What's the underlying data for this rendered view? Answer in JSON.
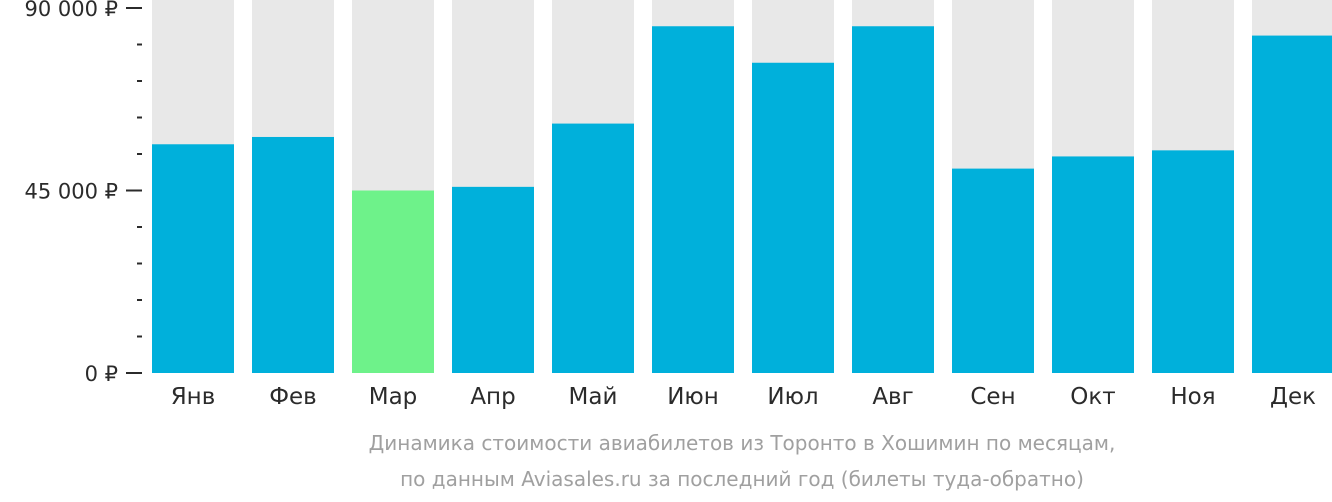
{
  "chart_data": {
    "type": "bar",
    "categories": [
      "Янв",
      "Фев",
      "Мар",
      "Апр",
      "Май",
      "Июн",
      "Июл",
      "Авг",
      "Сен",
      "Окт",
      "Ноя",
      "Дек"
    ],
    "values": [
      56400,
      58200,
      45000,
      45900,
      61500,
      85500,
      76500,
      85500,
      50400,
      53400,
      54900,
      83200
    ],
    "highlight_index": 2,
    "ylim": [
      0,
      90000
    ],
    "yticks": [
      {
        "value": 0,
        "label": "0 ₽"
      },
      {
        "value": 45000,
        "label": "45 000 ₽"
      },
      {
        "value": 90000,
        "label": "90 000 ₽"
      }
    ],
    "minor_tick_step": 9000,
    "colors": {
      "bar": "#00b0db",
      "highlight": "#6ef28a",
      "background_bar": "#e8e8e8"
    },
    "caption": [
      "Динамика стоимости авиабилетов из Торонто в Хошимин по месяцам,",
      "по данным Aviasales.ru за последний год (билеты туда-обратно)"
    ]
  }
}
